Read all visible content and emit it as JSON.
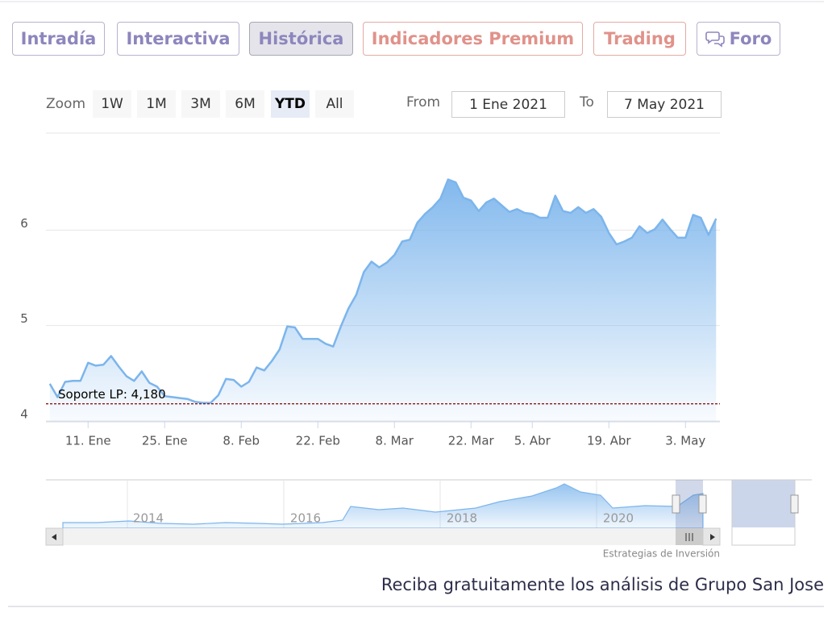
{
  "tabs": [
    "Intradía",
    "Interactiva",
    "Histórica",
    "Indicadores Premium",
    "Trading",
    "Foro"
  ],
  "zoom": {
    "label": "Zoom",
    "buttons": [
      "1W",
      "1M",
      "3M",
      "6M",
      "YTD",
      "All"
    ]
  },
  "range": {
    "from_label": "From",
    "from": "1 Ene 2021",
    "to_label": "To",
    "to": "7 May 2021"
  },
  "chart_data": {
    "type": "area",
    "color": "#7cb5ec",
    "categories": [
      null,
      null,
      null,
      null,
      null,
      "11. Ene",
      null,
      null,
      null,
      null,
      null,
      null,
      null,
      null,
      null,
      "25. Ene",
      null,
      null,
      null,
      null,
      null,
      null,
      null,
      null,
      null,
      "8. Feb",
      null,
      null,
      null,
      null,
      null,
      null,
      null,
      null,
      null,
      "22. Feb",
      null,
      null,
      null,
      null,
      null,
      null,
      null,
      null,
      null,
      "8. Mar",
      null,
      null,
      null,
      null,
      null,
      null,
      null,
      null,
      null,
      "22. Mar",
      null,
      null,
      null,
      null,
      null,
      null,
      null,
      "5. Abr",
      null,
      null,
      null,
      null,
      null,
      null,
      null,
      null,
      null,
      "19. Abr",
      null,
      null,
      null,
      null,
      null,
      null,
      null,
      null,
      null,
      "3. May",
      null,
      null,
      null,
      null
    ],
    "values": [
      4.39,
      4.25,
      4.41,
      4.42,
      4.42,
      4.61,
      4.58,
      4.59,
      4.68,
      4.57,
      4.47,
      4.42,
      4.52,
      4.4,
      4.36,
      4.26,
      4.25,
      4.24,
      4.23,
      4.2,
      4.19,
      4.19,
      4.27,
      4.44,
      4.43,
      4.36,
      4.41,
      4.56,
      4.53,
      4.63,
      4.75,
      4.99,
      4.98,
      4.86,
      4.86,
      4.86,
      4.81,
      4.78,
      4.99,
      5.18,
      5.32,
      5.56,
      5.67,
      5.61,
      5.66,
      5.74,
      5.88,
      5.9,
      6.08,
      6.17,
      6.24,
      6.33,
      6.53,
      6.5,
      6.34,
      6.31,
      6.2,
      6.29,
      6.33,
      6.26,
      6.19,
      6.22,
      6.18,
      6.17,
      6.13,
      6.13,
      6.36,
      6.2,
      6.18,
      6.24,
      6.18,
      6.22,
      6.14,
      5.97,
      5.85,
      5.88,
      5.92,
      6.04,
      5.97,
      6.01,
      6.11,
      6.01,
      5.92,
      5.92,
      6.16,
      6.13,
      5.95,
      6.12
    ],
    "ylim": [
      4,
      7
    ],
    "yticks": [
      4,
      5,
      6
    ],
    "grid": true,
    "annotation": {
      "text": "Soporte LP: 4,180",
      "value": 4.18,
      "color": "#8b1a1a"
    }
  },
  "navigator": {
    "labels": [
      "2014",
      "2016",
      "2018",
      "2020"
    ]
  },
  "credit": "Estrategias de Inversión",
  "footer": "Reciba gratuitamente los análisis de Grupo San Jose"
}
